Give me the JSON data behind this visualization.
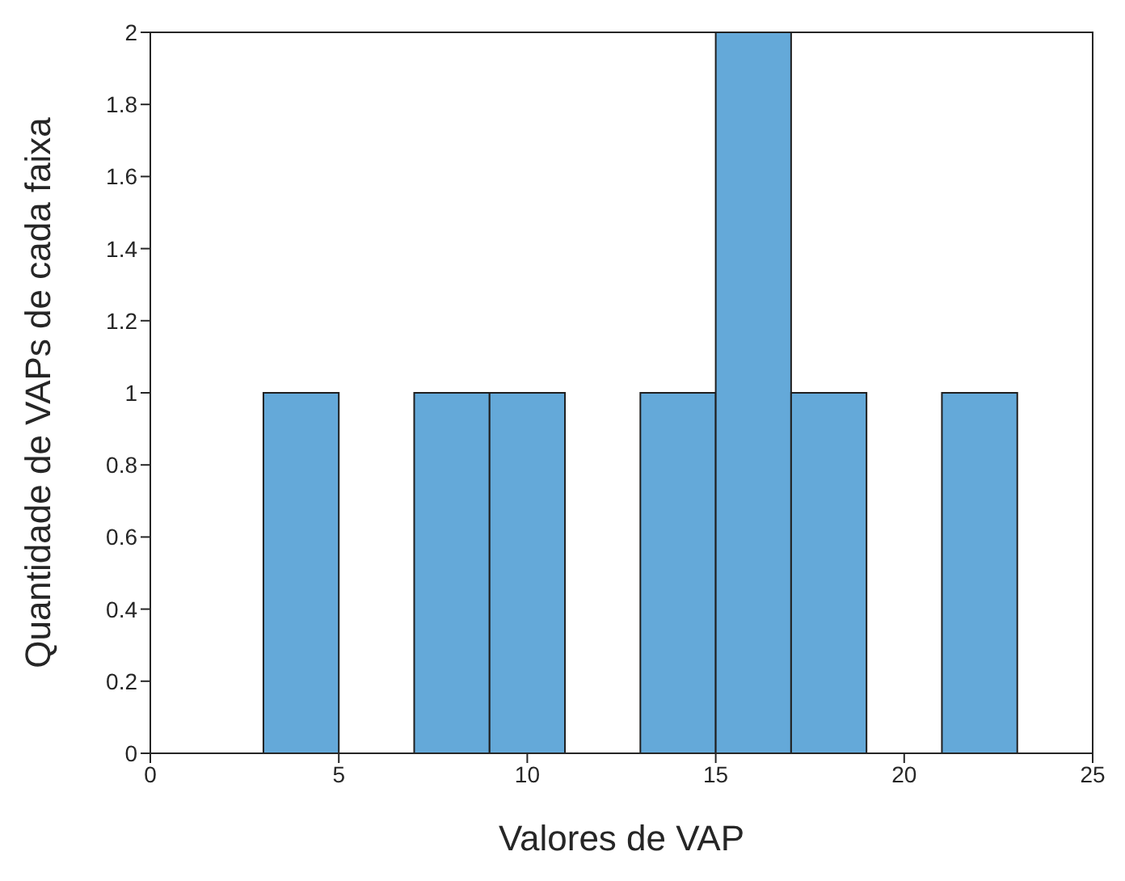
{
  "chart_data": {
    "type": "histogram",
    "xlabel": "Valores de VAP",
    "ylabel": "Quantidade de VAPs de cada faixa",
    "bins": [
      3,
      5,
      7,
      9,
      11,
      13,
      15,
      17,
      19,
      21,
      23
    ],
    "values": [
      1,
      0,
      1,
      1,
      0,
      1,
      2,
      1,
      0,
      1
    ],
    "color": "#64a9d9",
    "xlim": [
      0,
      25
    ],
    "xticks": [
      0,
      5,
      10,
      15,
      20,
      25
    ],
    "ylim": [
      0,
      2
    ],
    "yticks": [
      0,
      0.2,
      0.4,
      0.6,
      0.8,
      1,
      1.2,
      1.4,
      1.6,
      1.8,
      2
    ],
    "grid": false,
    "legend": false
  }
}
